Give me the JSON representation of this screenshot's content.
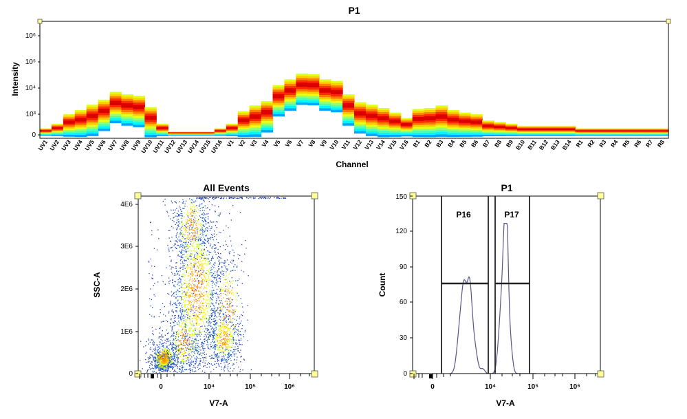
{
  "charts": {
    "spectrum": {
      "title": "P1",
      "xlabel": "Channel",
      "ylabel": "Intensity",
      "yticks": [
        "0",
        "10³",
        "10⁴",
        "10⁵",
        "10⁶"
      ]
    },
    "scatter": {
      "title": "All Events",
      "xlabel": "V7-A",
      "ylabel": "SSC-A",
      "xticks": [
        "0",
        "10⁴",
        "10⁵",
        "10⁶"
      ],
      "yticks": [
        "0",
        "1E6",
        "2E6",
        "3E6",
        "4E6"
      ]
    },
    "histogram": {
      "title": "P1",
      "xlabel": "V7-A",
      "ylabel": "Count",
      "xticks": [
        "0",
        "10⁴",
        "10⁵",
        "10⁶"
      ],
      "yticks": [
        "0",
        "30",
        "60",
        "90",
        "120",
        "150"
      ],
      "gates": [
        "P16",
        "P17"
      ]
    }
  },
  "chart_data": [
    {
      "type": "heatmap",
      "title": "P1",
      "xlabel": "Channel",
      "ylabel": "Intensity",
      "yscale": "log",
      "categories": [
        "UV1",
        "UV2",
        "UV3",
        "UV4",
        "UV5",
        "UV6",
        "UV7",
        "UV8",
        "UV9",
        "UV10",
        "UV11",
        "UV12",
        "UV13",
        "UV14",
        "UV15",
        "UV16",
        "V1",
        "V2",
        "V3",
        "V4",
        "V5",
        "V6",
        "V7",
        "V8",
        "V9",
        "V10",
        "V11",
        "V12",
        "V13",
        "V14",
        "V15",
        "V16",
        "B1",
        "B2",
        "B3",
        "B4",
        "B5",
        "B6",
        "B7",
        "B8",
        "B9",
        "B10",
        "B11",
        "B12",
        "B13",
        "B14",
        "R1",
        "R2",
        "R3",
        "R4",
        "R5",
        "R6",
        "R7",
        "R8"
      ],
      "peak_intensity": [
        200,
        300,
        700,
        1000,
        1600,
        2500,
        5000,
        4000,
        3500,
        1300,
        300,
        150,
        150,
        150,
        150,
        200,
        300,
        900,
        1500,
        2200,
        9000,
        15000,
        25000,
        24000,
        15000,
        13000,
        4000,
        2000,
        1600,
        1200,
        800,
        500,
        1100,
        1200,
        1500,
        1000,
        800,
        700,
        400,
        350,
        300,
        250,
        250,
        250,
        250,
        250,
        200,
        200,
        200,
        200,
        200,
        200,
        200,
        200
      ]
    },
    {
      "type": "scatter",
      "title": "All Events",
      "xlabel": "V7-A",
      "ylabel": "SSC-A",
      "xscale": "biexponential",
      "ylim": [
        0,
        4200000
      ],
      "populations": [
        {
          "x_center": 200,
          "y_center": 300000
        },
        {
          "x_center": 2500,
          "y_center": 2000000
        },
        {
          "x_center": 25000,
          "y_center": 800000
        }
      ]
    },
    {
      "type": "area",
      "title": "P1",
      "xlabel": "V7-A",
      "ylabel": "Count",
      "xscale": "biexponential",
      "ylim": [
        0,
        150
      ],
      "gates": [
        {
          "name": "P16",
          "x_range": [
            600,
            8500
          ]
        },
        {
          "name": "P17",
          "x_range": [
            11000,
            85000
          ]
        }
      ],
      "peaks": [
        {
          "x": 3000,
          "count": 68
        },
        {
          "x": 20000,
          "count": 127
        }
      ]
    }
  ]
}
